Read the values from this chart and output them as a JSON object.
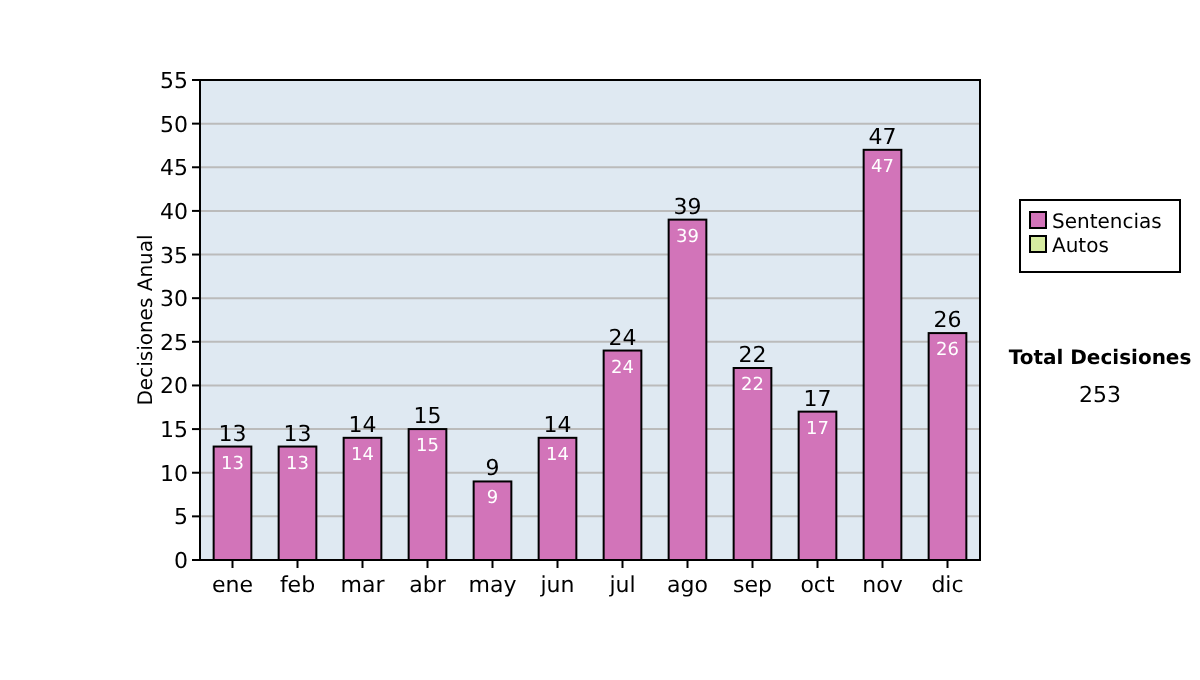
{
  "chart_data": {
    "type": "bar",
    "ylabel": "Decisiones Anual",
    "categories": [
      "ene",
      "feb",
      "mar",
      "abr",
      "may",
      "jun",
      "jul",
      "ago",
      "sep",
      "oct",
      "nov",
      "dic"
    ],
    "series": [
      {
        "name": "Sentencias",
        "color": "#d274b9",
        "values": [
          13,
          13,
          14,
          15,
          9,
          14,
          24,
          39,
          22,
          17,
          47,
          26
        ],
        "value_labels": [
          "13",
          "13",
          "14",
          "15",
          "9",
          "14",
          "24",
          "39",
          "22",
          "17",
          "47",
          "26"
        ]
      },
      {
        "name": "Autos",
        "color": "#d6eba0",
        "values": [
          0,
          0,
          0,
          0,
          0,
          0,
          0,
          0,
          0,
          0,
          0,
          0
        ]
      }
    ],
    "stacked": true,
    "totals": [
      "13",
      "13",
      "14",
      "15",
      "9",
      "14",
      "24",
      "39",
      "22",
      "17",
      "47",
      "26"
    ],
    "ylim": [
      0,
      55
    ],
    "yticks": [
      0,
      5,
      10,
      15,
      20,
      25,
      30,
      35,
      40,
      45,
      50,
      55
    ],
    "grid": "y",
    "legend": "right",
    "annotations": [
      "Total Decisiones",
      "253"
    ]
  }
}
